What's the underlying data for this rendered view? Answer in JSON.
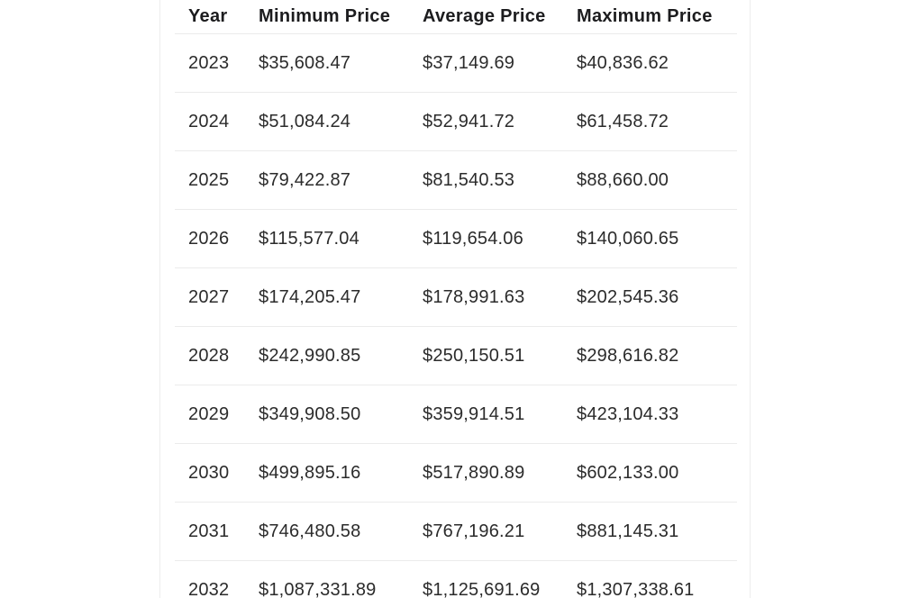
{
  "chart_data": {
    "type": "table",
    "title": "",
    "headers": [
      "Year",
      "Minimum Price",
      "Average Price",
      "Maximum Price"
    ],
    "rows": [
      [
        "2023",
        "$35,608.47",
        "$37,149.69",
        "$40,836.62"
      ],
      [
        "2024",
        "$51,084.24",
        "$52,941.72",
        "$61,458.72"
      ],
      [
        "2025",
        "$79,422.87",
        "$81,540.53",
        "$88,660.00"
      ],
      [
        "2026",
        "$115,577.04",
        "$119,654.06",
        "$140,060.65"
      ],
      [
        "2027",
        "$174,205.47",
        "$178,991.63",
        "$202,545.36"
      ],
      [
        "2028",
        "$242,990.85",
        "$250,150.51",
        "$298,616.82"
      ],
      [
        "2029",
        "$349,908.50",
        "$359,914.51",
        "$423,104.33"
      ],
      [
        "2030",
        "$499,895.16",
        "$517,890.89",
        "$602,133.00"
      ],
      [
        "2031",
        "$746,480.58",
        "$767,196.21",
        "$881,145.31"
      ],
      [
        "2032",
        "$1,087,331.89",
        "$1,125,691.69",
        "$1,307,338.61"
      ]
    ],
    "years_numeric": [
      2023,
      2024,
      2025,
      2026,
      2027,
      2028,
      2029,
      2030,
      2031,
      2032
    ],
    "series": [
      {
        "name": "Minimum Price",
        "values": [
          35608.47,
          51084.24,
          79422.87,
          115577.04,
          174205.47,
          242990.85,
          349908.5,
          499895.16,
          746480.58,
          1087331.89
        ]
      },
      {
        "name": "Average Price",
        "values": [
          37149.69,
          52941.72,
          81540.53,
          119654.06,
          178991.63,
          250150.51,
          359914.51,
          517890.89,
          767196.21,
          1125691.69
        ]
      },
      {
        "name": "Maximum Price",
        "values": [
          40836.62,
          61458.72,
          88660.0,
          140060.65,
          202545.36,
          298616.82,
          423104.33,
          602133.0,
          881145.31,
          1307338.61
        ]
      }
    ]
  },
  "colors": {
    "header_text": "#1c1c1e",
    "body_text": "#2b2b2b",
    "row_separator": "#ebebeb",
    "card_edge": "#ededed",
    "background": "#ffffff"
  }
}
